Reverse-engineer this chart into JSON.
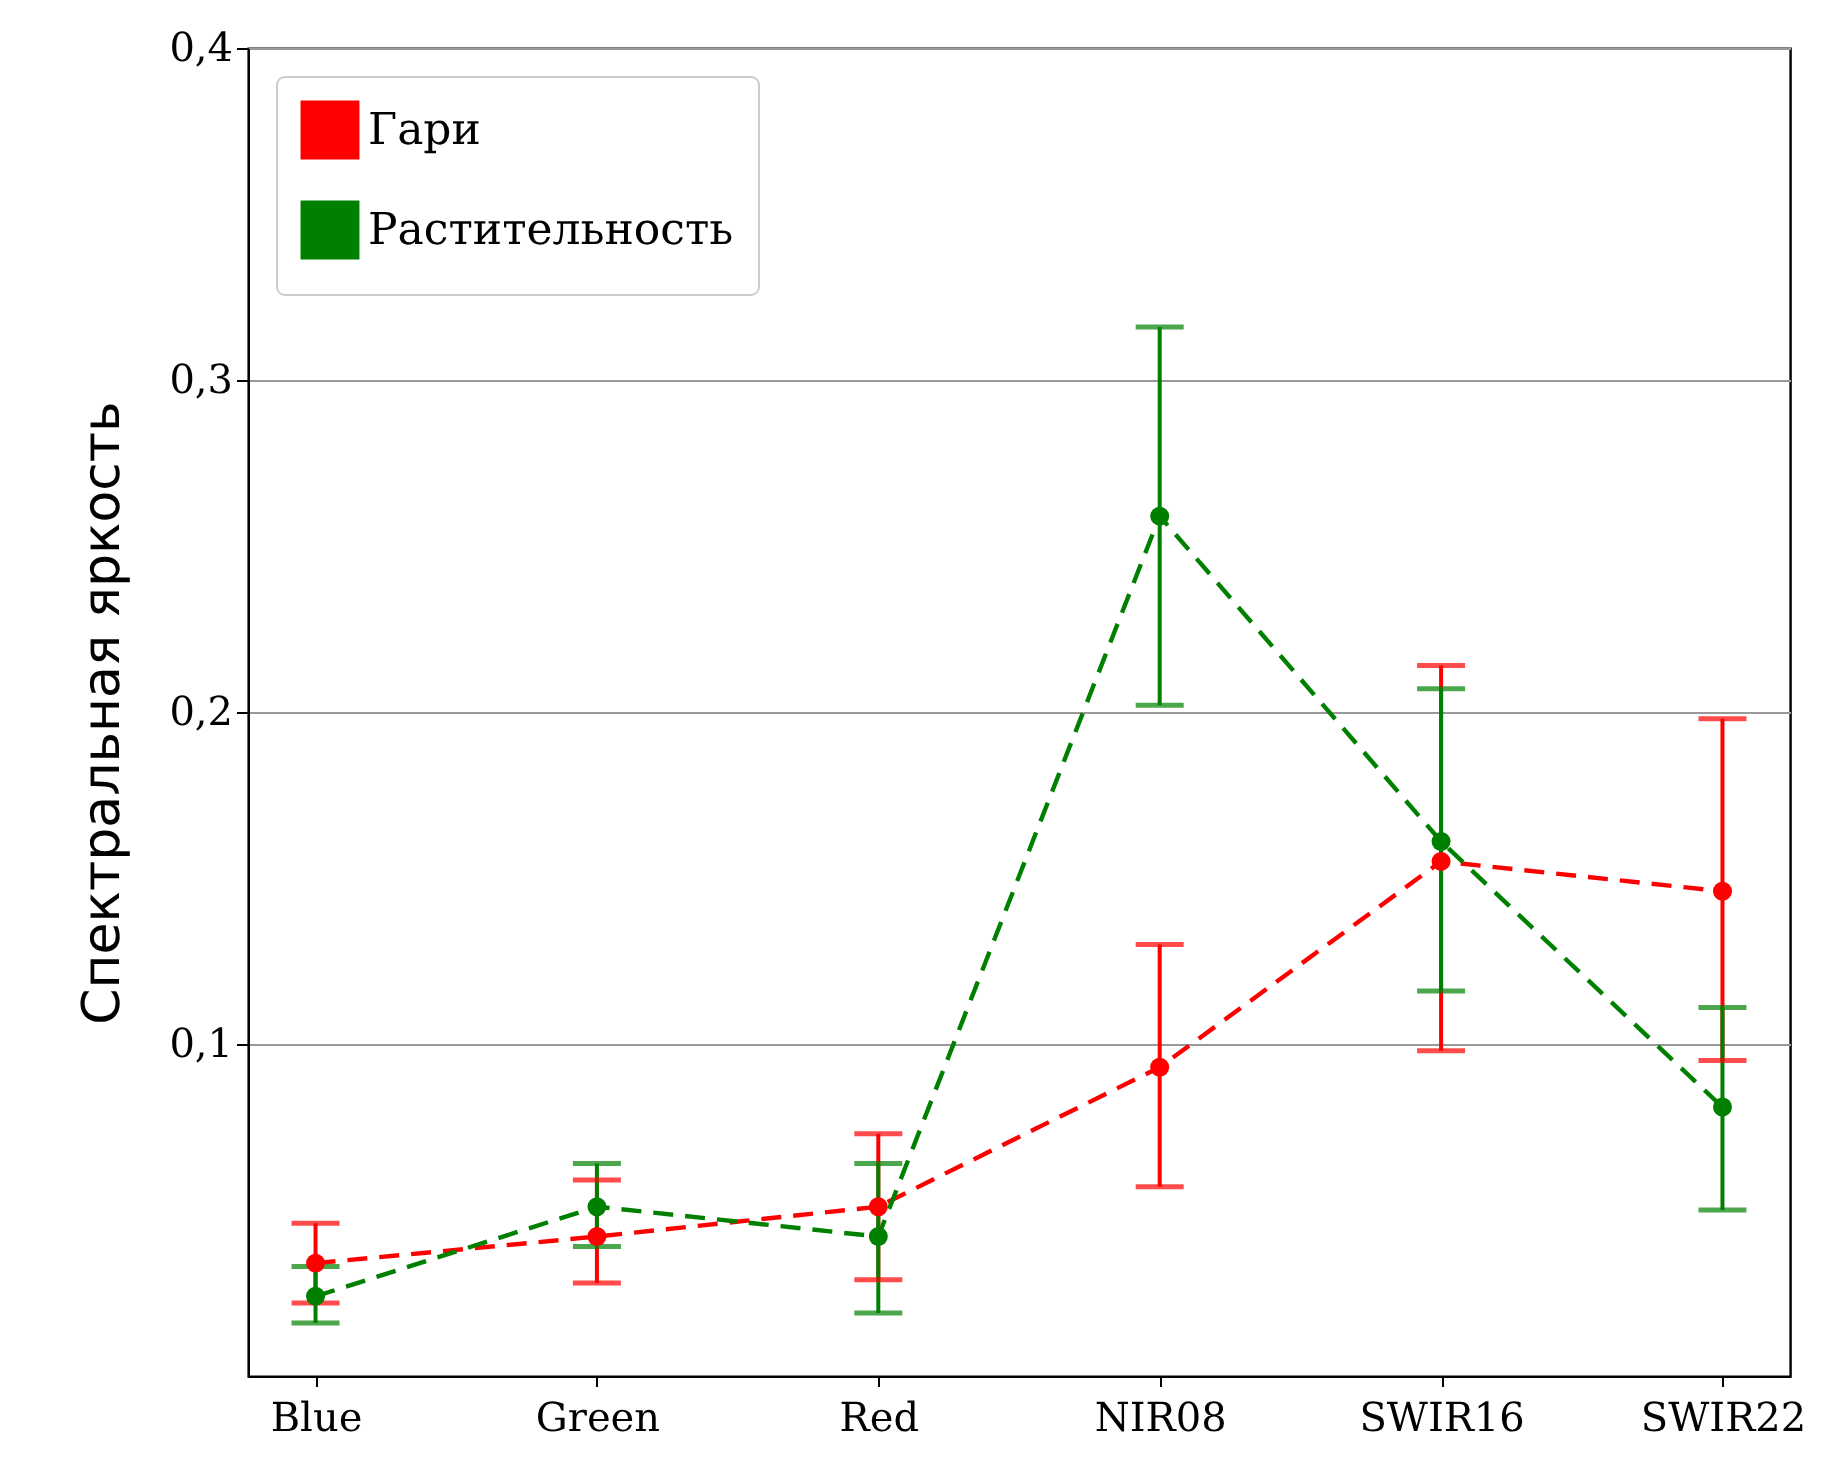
{
  "chart_data": {
    "type": "line",
    "ylabel": "Спектральная яркость",
    "categories": [
      "Blue",
      "Green",
      "Red",
      "NIR08",
      "SWIR16",
      "SWIR22"
    ],
    "series": [
      {
        "name": "Гари",
        "color": "#ff0000",
        "values": [
          0.034,
          0.042,
          0.051,
          0.093,
          0.155,
          0.146
        ],
        "errors": [
          [
            0.022,
            0.046
          ],
          [
            0.028,
            0.059
          ],
          [
            0.029,
            0.073
          ],
          [
            0.057,
            0.13
          ],
          [
            0.098,
            0.214
          ],
          [
            0.095,
            0.198
          ]
        ]
      },
      {
        "name": "Растительность",
        "color": "#008000",
        "values": [
          0.024,
          0.051,
          0.042,
          0.259,
          0.161,
          0.081
        ],
        "errors": [
          [
            0.016,
            0.033
          ],
          [
            0.039,
            0.064
          ],
          [
            0.019,
            0.064
          ],
          [
            0.202,
            0.316
          ],
          [
            0.116,
            0.207
          ],
          [
            0.05,
            0.111
          ]
        ]
      }
    ],
    "ylim": [
      0,
      0.4
    ],
    "yticks": [
      {
        "value": 0.1,
        "label": "0,1"
      },
      {
        "value": 0.2,
        "label": "0,2"
      },
      {
        "value": 0.3,
        "label": "0,3"
      },
      {
        "value": 0.4,
        "label": "0,4"
      }
    ],
    "grid": "y",
    "legend": "top left",
    "marker": "circle",
    "line_style": "dashed"
  }
}
